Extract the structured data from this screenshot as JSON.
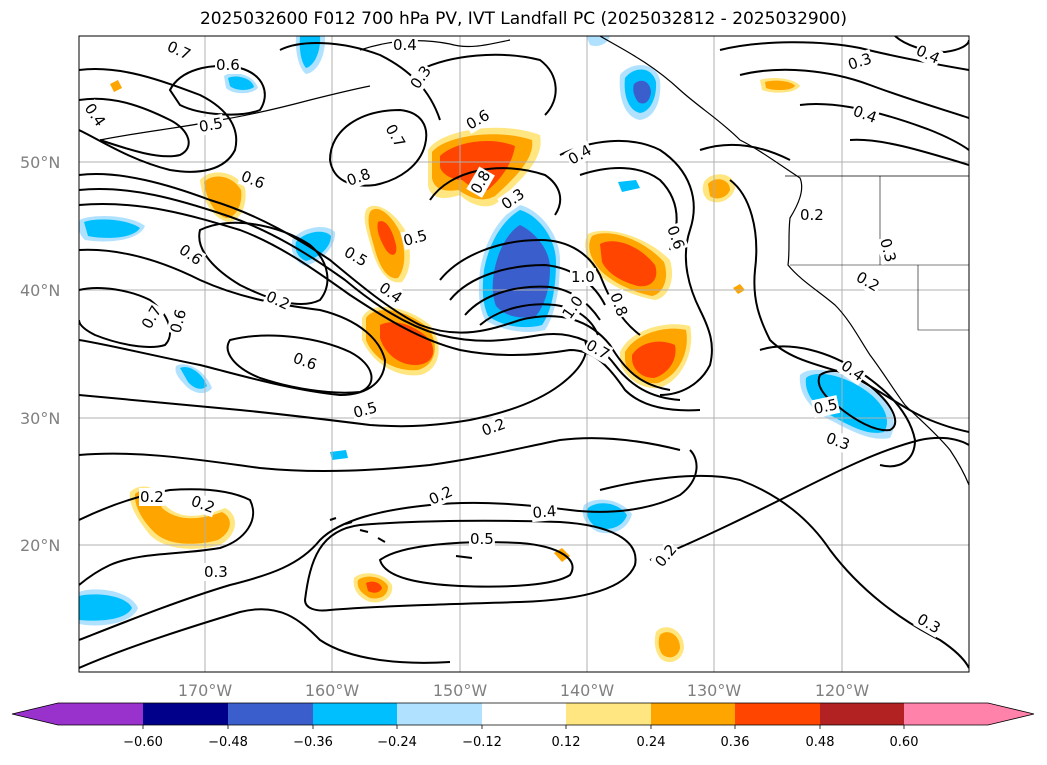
{
  "title": "2025032600 F012 700 hPa PV, IVT Landfall PC (2025032812 - 2025032900)",
  "map": {
    "lat_labels": [
      "50°N",
      "40°N",
      "30°N",
      "20°N"
    ],
    "lon_labels": [
      "170°W",
      "160°W",
      "150°W",
      "140°W",
      "130°W",
      "120°W"
    ],
    "gridline_color": "#b0b0b0",
    "label_color": "#808080"
  },
  "colorbar": {
    "tick_labels": [
      "−0.60",
      "−0.48",
      "−0.36",
      "−0.24",
      "−0.12",
      "0.12",
      "0.24",
      "0.36",
      "0.48",
      "0.60"
    ],
    "colors": [
      "#9932cc",
      "#00008b",
      "#3a5fcd",
      "#00bfff",
      "#b0e2ff",
      "#ffffff",
      "#ffe680",
      "#ffa500",
      "#ff4500",
      "#b22222",
      "#ff82ab"
    ]
  },
  "contour_labels": [
    {
      "text": "0.7"
    },
    {
      "text": "0.6"
    },
    {
      "text": "0.4"
    },
    {
      "text": "0.5"
    },
    {
      "text": "0.4"
    },
    {
      "text": "0.3"
    },
    {
      "text": "0.4"
    },
    {
      "text": "0.3"
    },
    {
      "text": "0.8"
    },
    {
      "text": "0.7"
    },
    {
      "text": "0.6"
    },
    {
      "text": "0.8"
    },
    {
      "text": "0.6"
    },
    {
      "text": "0.4"
    },
    {
      "text": "0.3"
    },
    {
      "text": "0.4"
    },
    {
      "text": "0.6"
    },
    {
      "text": "0.5"
    },
    {
      "text": "0.5"
    },
    {
      "text": "0.4"
    },
    {
      "text": "0.2"
    },
    {
      "text": "0.2"
    },
    {
      "text": "0.3"
    },
    {
      "text": "1.0"
    },
    {
      "text": "1.0"
    },
    {
      "text": "0.8"
    },
    {
      "text": "0.7"
    },
    {
      "text": "0.6"
    },
    {
      "text": "0.2"
    },
    {
      "text": "0.7"
    },
    {
      "text": "0.6"
    },
    {
      "text": "0.6"
    },
    {
      "text": "0.5"
    },
    {
      "text": "0.2"
    },
    {
      "text": "0.4"
    },
    {
      "text": "0.5"
    },
    {
      "text": "0.3"
    },
    {
      "text": "0.2"
    },
    {
      "text": "0.2"
    },
    {
      "text": "0.2"
    },
    {
      "text": "0.4"
    },
    {
      "text": "0.5"
    },
    {
      "text": "0.3"
    },
    {
      "text": "0.2"
    },
    {
      "text": "0.3"
    }
  ],
  "shaded_regions": [
    {
      "color": "#ff4500",
      "name": "pc-positive-high"
    },
    {
      "color": "#ffa500",
      "name": "pc-positive-mid"
    },
    {
      "color": "#ffe680",
      "name": "pc-positive-low"
    },
    {
      "color": "#3a5fcd",
      "name": "pc-negative-high"
    },
    {
      "color": "#00bfff",
      "name": "pc-negative-mid"
    },
    {
      "color": "#b0e2ff",
      "name": "pc-negative-low"
    }
  ]
}
